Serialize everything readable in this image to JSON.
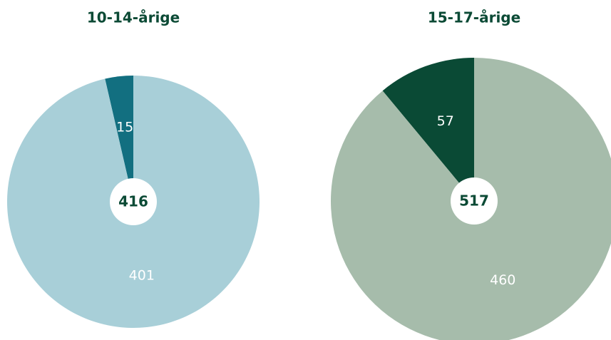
{
  "chart_data": [
    {
      "type": "pie",
      "title": "10-14-årige",
      "values": [
        15,
        401
      ],
      "colors": [
        "#126f80",
        "#a8cfd8"
      ],
      "center_label": 416
    },
    {
      "type": "pie",
      "title": "15-17-årige",
      "values": [
        57,
        460
      ],
      "colors": [
        "#0a4a35",
        "#a6bcab"
      ],
      "center_label": 517
    }
  ]
}
